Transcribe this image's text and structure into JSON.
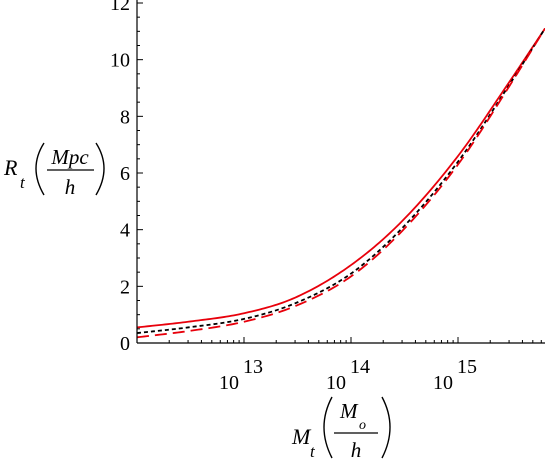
{
  "chart_data": {
    "type": "line",
    "x_scale": "log",
    "xlim": [
      1000000000000.0,
      6500000000000000.0
    ],
    "ylim": [
      0,
      12
    ],
    "x_ticks": [
      {
        "base": "10",
        "exp": "13",
        "value": 10000000000000.0
      },
      {
        "base": "10",
        "exp": "14",
        "value": 100000000000000.0
      },
      {
        "base": "10",
        "exp": "15",
        "value": 1000000000000000.0
      }
    ],
    "y_ticks": [
      {
        "label": "0",
        "value": 0
      },
      {
        "label": "2",
        "value": 2
      },
      {
        "label": "4",
        "value": 4
      },
      {
        "label": "6",
        "value": 6
      },
      {
        "label": "8",
        "value": 8
      },
      {
        "label": "10",
        "value": 10
      },
      {
        "label": "12",
        "value": 12
      }
    ],
    "ylabel": {
      "main": "R",
      "sub": "t",
      "num": "Mpc",
      "den": "h"
    },
    "xlabel": {
      "main": "M",
      "sub": "t",
      "num": "M",
      "num_sub": "o",
      "den": "h"
    },
    "series": [
      {
        "color": "#e8000b",
        "style": "solid",
        "x": [
          1000000000000.0,
          3000000000000.0,
          10000000000000.0,
          30000000000000.0,
          100000000000000.0,
          300000000000000.0,
          1000000000000000.0,
          3000000000000000.0,
          6500000000000000.0
        ],
        "y": [
          0.55,
          0.75,
          1.05,
          1.6,
          2.75,
          4.3,
          6.6,
          9.2,
          11.1
        ]
      },
      {
        "color": "#000000",
        "style": "dotted",
        "x": [
          1000000000000.0,
          3000000000000.0,
          10000000000000.0,
          30000000000000.0,
          100000000000000.0,
          300000000000000.0,
          1000000000000000.0,
          3000000000000000.0,
          6500000000000000.0
        ],
        "y": [
          0.35,
          0.55,
          0.85,
          1.4,
          2.45,
          4.05,
          6.4,
          9.1,
          11.1
        ]
      },
      {
        "color": "#e8000b",
        "style": "dashed",
        "x": [
          1000000000000.0,
          3000000000000.0,
          10000000000000.0,
          30000000000000.0,
          100000000000000.0,
          300000000000000.0,
          1000000000000000.0,
          3000000000000000.0,
          6500000000000000.0
        ],
        "y": [
          0.2,
          0.42,
          0.75,
          1.3,
          2.35,
          3.95,
          6.3,
          9.05,
          11.1
        ]
      }
    ]
  }
}
